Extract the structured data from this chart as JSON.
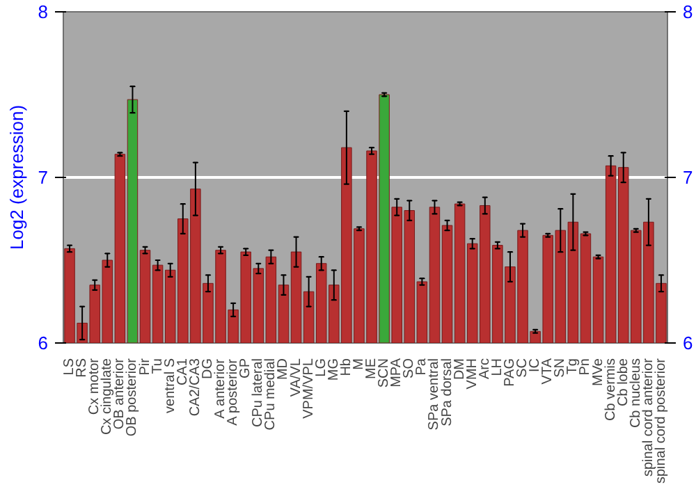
{
  "chart_data": {
    "type": "bar",
    "ylabel": "Log2 (expression)",
    "categories": [
      "LS",
      "RS",
      "Cx motor",
      "Cx cingulate",
      "OB anterior",
      "OB posterior",
      "Pir",
      "Tu",
      "ventral S",
      "CA1",
      "CA2/CA3",
      "DG",
      "A anterior",
      "A posterior",
      "GP",
      "CPu lateral",
      "CPu medial",
      "MD",
      "VA/VL",
      "VPM/VPL",
      "LG",
      "MG",
      "Hb",
      "M",
      "ME",
      "SCN",
      "MPA",
      "SO",
      "Pa",
      "SPa ventral",
      "SPa dorsal",
      "DM",
      "VMH",
      "Arc",
      "LH",
      "PAG",
      "SC",
      "IC",
      "VTA",
      "SN",
      "Tg",
      "Pn",
      "MVe",
      "Cb vermis",
      "Cb lobe",
      "Cb nucleus",
      "spinal cord anterior",
      "spinal cord posterior"
    ],
    "values": [
      6.57,
      6.12,
      6.35,
      6.5,
      7.14,
      7.47,
      6.56,
      6.47,
      6.44,
      6.75,
      6.93,
      6.36,
      6.56,
      6.2,
      6.55,
      6.45,
      6.52,
      6.35,
      6.55,
      6.31,
      6.48,
      6.35,
      7.18,
      6.69,
      7.16,
      7.5,
      6.82,
      6.8,
      6.37,
      6.82,
      6.71,
      6.84,
      6.6,
      6.83,
      6.59,
      6.46,
      6.68,
      6.07,
      6.65,
      6.68,
      6.73,
      6.66,
      6.52,
      7.07,
      7.06,
      6.68,
      6.73,
      6.36
    ],
    "errors": [
      0.02,
      0.1,
      0.03,
      0.04,
      0.01,
      0.08,
      0.02,
      0.03,
      0.04,
      0.09,
      0.16,
      0.05,
      0.02,
      0.04,
      0.02,
      0.03,
      0.04,
      0.06,
      0.09,
      0.09,
      0.04,
      0.09,
      0.22,
      0.01,
      0.02,
      0.01,
      0.05,
      0.06,
      0.02,
      0.04,
      0.03,
      0.01,
      0.03,
      0.05,
      0.02,
      0.09,
      0.04,
      0.01,
      0.01,
      0.13,
      0.17,
      0.01,
      0.01,
      0.06,
      0.09,
      0.01,
      0.14,
      0.05
    ],
    "colors": [
      "#b83030",
      "#b83030",
      "#b83030",
      "#b83030",
      "#b83030",
      "#3aa83a",
      "#b83030",
      "#b83030",
      "#b83030",
      "#b83030",
      "#b83030",
      "#b83030",
      "#b83030",
      "#b83030",
      "#b83030",
      "#b83030",
      "#b83030",
      "#b83030",
      "#b83030",
      "#b83030",
      "#b83030",
      "#b83030",
      "#b83030",
      "#b83030",
      "#b83030",
      "#3aa83a",
      "#b83030",
      "#b83030",
      "#b83030",
      "#b83030",
      "#b83030",
      "#b83030",
      "#b83030",
      "#b83030",
      "#b83030",
      "#b83030",
      "#b83030",
      "#b83030",
      "#b83030",
      "#b83030",
      "#b83030",
      "#b83030",
      "#b83030",
      "#b83030",
      "#b83030",
      "#b83030",
      "#b83030",
      "#b83030"
    ],
    "ylim": [
      6,
      8
    ],
    "yticks": [
      6,
      7,
      8
    ],
    "y2lim": [
      6,
      8
    ],
    "y2ticks": [
      6,
      7,
      8
    ],
    "grid": "y"
  }
}
